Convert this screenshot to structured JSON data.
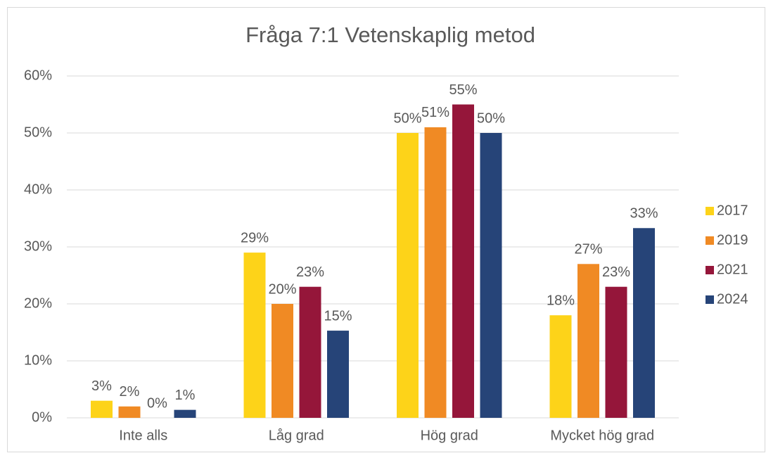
{
  "chart_data": {
    "type": "bar",
    "title": "Fråga 7:1 Vetenskaplig metod",
    "categories": [
      "Inte alls",
      "Låg grad",
      "Hög grad",
      "Mycket hög grad"
    ],
    "series": [
      {
        "name": "2017",
        "color": "#fdd319",
        "values": [
          3,
          29,
          50,
          18
        ],
        "value_labels": [
          "3%",
          "29%",
          "50%",
          "18%"
        ]
      },
      {
        "name": "2019",
        "color": "#f08a24",
        "values": [
          2,
          20,
          51,
          27
        ],
        "value_labels": [
          "2%",
          "20%",
          "51%",
          "27%"
        ]
      },
      {
        "name": "2021",
        "color": "#95163a",
        "values": [
          0,
          23,
          55,
          23
        ],
        "value_labels": [
          "0%",
          "23%",
          "55%",
          "23%"
        ]
      },
      {
        "name": "2024",
        "color": "#264478",
        "values": [
          1.4,
          15.3,
          50,
          33.3
        ],
        "value_labels": [
          "1%",
          "15%",
          "50%",
          "33%"
        ]
      }
    ],
    "ylim": [
      0,
      60
    ],
    "yticks": [
      {
        "value": 0,
        "label": "0%"
      },
      {
        "value": 10,
        "label": "10%"
      },
      {
        "value": 20,
        "label": "20%"
      },
      {
        "value": 30,
        "label": "30%"
      },
      {
        "value": 40,
        "label": "40%"
      },
      {
        "value": 50,
        "label": "50%"
      },
      {
        "value": 60,
        "label": "60%"
      }
    ],
    "grid": true,
    "legend": "right"
  }
}
